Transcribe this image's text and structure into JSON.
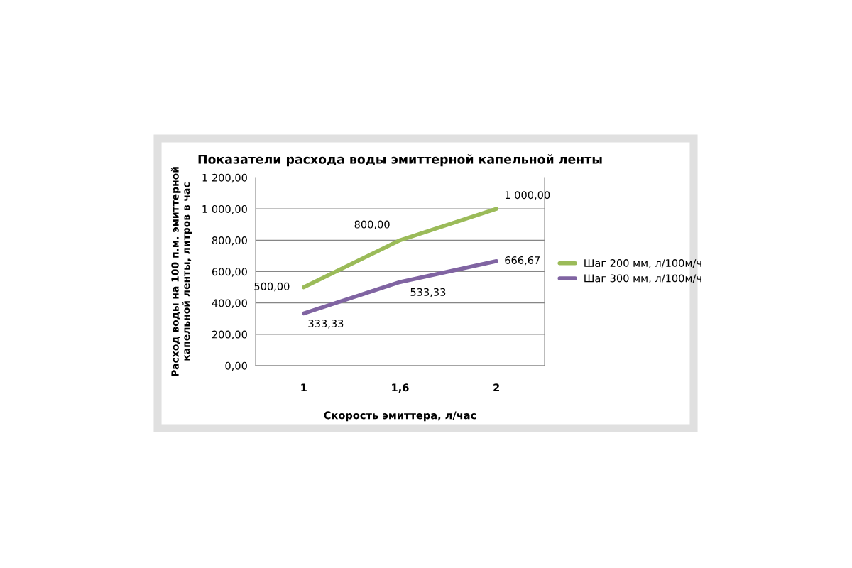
{
  "chart_data": {
    "type": "line",
    "title": "Показатели расхода воды эмиттерной капельной ленты",
    "xlabel": "Скорость эмиттера, л/час",
    "ylabel": "Расход воды на 100 п.м. эмиттерной\nкапельной ленты, литров в час",
    "categories": [
      "1",
      "1,6",
      "2"
    ],
    "series": [
      {
        "name": "Шаг 200 мм, л/100м/ч",
        "color": "#9bbb59",
        "values": [
          500,
          800,
          1000
        ],
        "value_labels": [
          "500,00",
          "800,00",
          "1 000,00"
        ]
      },
      {
        "name": "Шаг 300 мм, л/100м/ч",
        "color": "#8064a2",
        "values": [
          333.33,
          533.33,
          666.67
        ],
        "value_labels": [
          "333,33",
          "533,33",
          "666,67"
        ]
      }
    ],
    "ylim": [
      0,
      1200
    ],
    "yticks": [
      {
        "value": 0,
        "label": "0,00"
      },
      {
        "value": 200,
        "label": "200,00"
      },
      {
        "value": 400,
        "label": "400,00"
      },
      {
        "value": 600,
        "label": "600,00"
      },
      {
        "value": 800,
        "label": "800,00"
      },
      {
        "value": 1000,
        "label": "1 000,00"
      },
      {
        "value": 1200,
        "label": "1 200,00"
      }
    ],
    "grid": "y",
    "legend": "right",
    "marker": "none",
    "line_style": "solid"
  }
}
